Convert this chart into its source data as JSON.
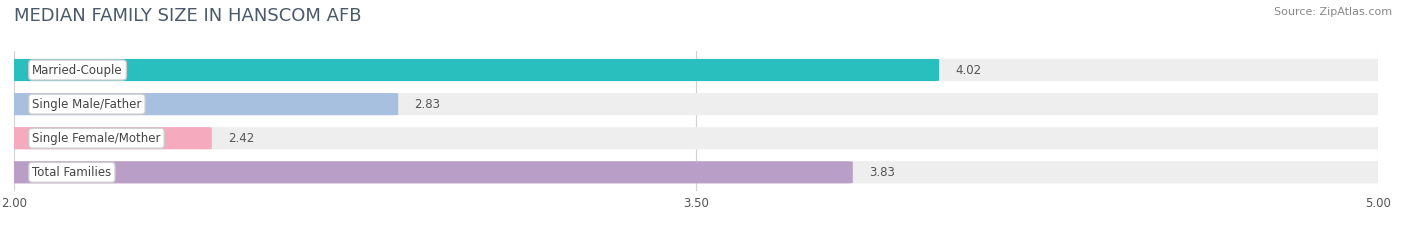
{
  "title": "MEDIAN FAMILY SIZE IN HANSCOM AFB",
  "source": "Source: ZipAtlas.com",
  "categories": [
    "Married-Couple",
    "Single Male/Father",
    "Single Female/Mother",
    "Total Families"
  ],
  "values": [
    4.02,
    2.83,
    2.42,
    3.83
  ],
  "bar_colors": [
    "#29bfbe",
    "#a8c0e0",
    "#f5aabe",
    "#b99ec8"
  ],
  "xlim_left": 2.0,
  "xlim_right": 5.0,
  "xticks": [
    2.0,
    3.5,
    5.0
  ],
  "xtick_labels": [
    "2.00",
    "3.50",
    "5.00"
  ],
  "bar_height": 0.62,
  "background_color": "#ffffff",
  "plot_bg_color": "#ffffff",
  "row_bg_color": "#eeeeee",
  "title_fontsize": 13,
  "label_fontsize": 8.5,
  "value_fontsize": 8.5,
  "source_fontsize": 8,
  "title_color": "#4a5a6a",
  "source_color": "#888888",
  "value_color": "#555555",
  "label_color": "#444444"
}
